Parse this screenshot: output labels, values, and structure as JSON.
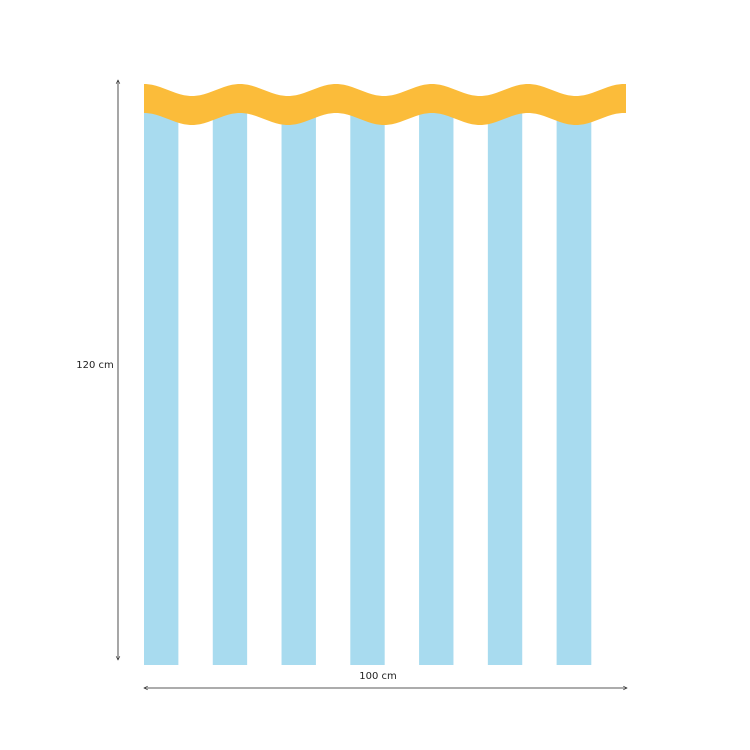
{
  "dimensions": {
    "height": "120 cm",
    "width": "100 cm"
  }
}
